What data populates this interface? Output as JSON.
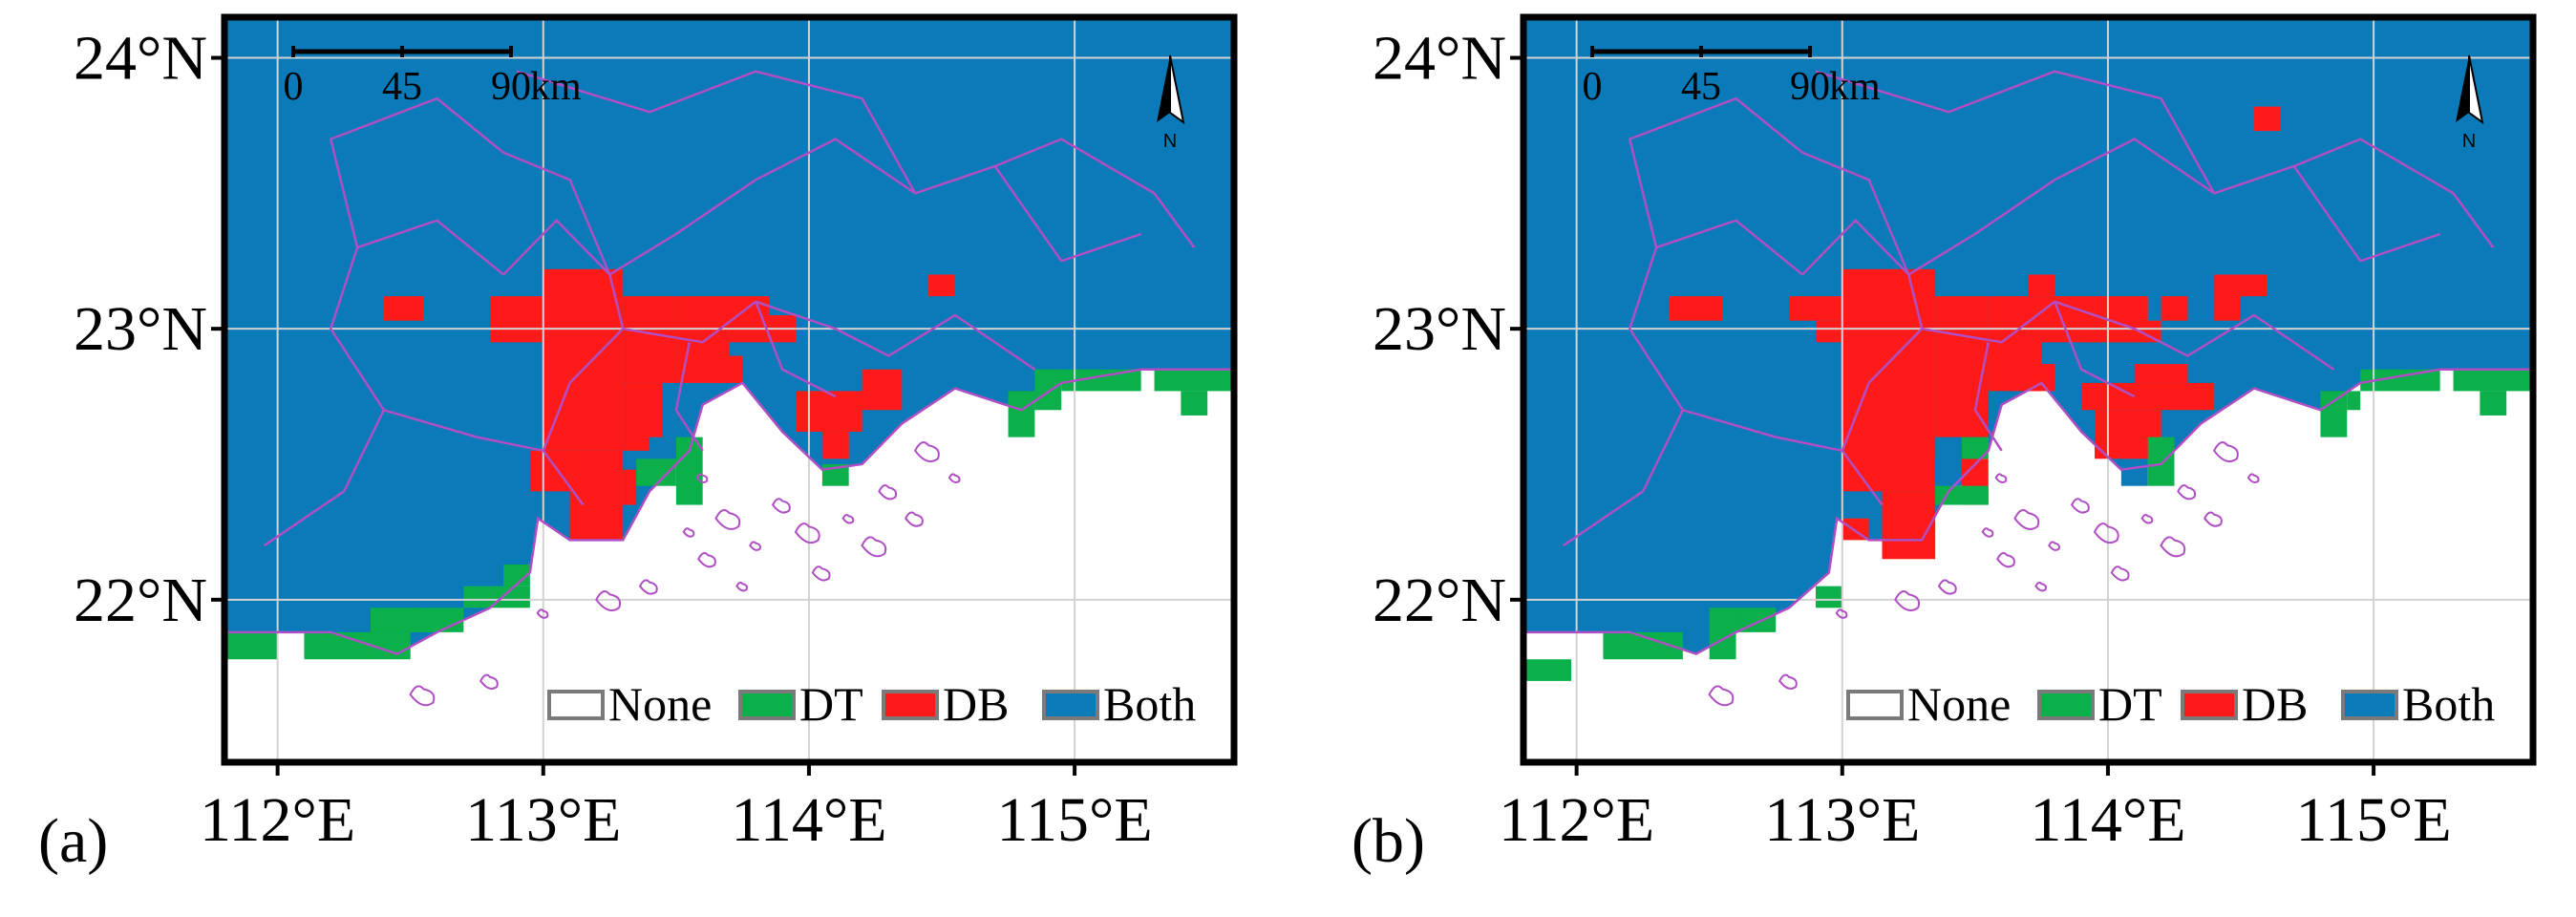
{
  "colors": {
    "None": "#ffffff",
    "DT": "#0bb04b",
    "DB": "#ff1a1a",
    "Both": "#0b7ab9",
    "boundary": "#b04fc4",
    "grid": "#d2d2d2",
    "frame": "#000000"
  },
  "axes": {
    "x_ticks": [
      "112°E",
      "113°E",
      "114°E",
      "115°E"
    ],
    "y_ticks": [
      "24°N",
      "23°N",
      "22°N"
    ],
    "x_range": [
      111.8,
      115.6
    ],
    "y_range": [
      21.4,
      24.15
    ]
  },
  "scale_bar": {
    "labels": [
      "0",
      "45",
      "90"
    ],
    "unit": "km"
  },
  "north_arrow": {
    "letter": "N",
    "icon": "north-arrow-icon"
  },
  "legend": [
    {
      "key": "None",
      "label": "None"
    },
    {
      "key": "DT",
      "label": "DT"
    },
    {
      "key": "DB",
      "label": "DB"
    },
    {
      "key": "Both",
      "label": "Both"
    }
  ],
  "panels": [
    {
      "label": "(a)",
      "cells": [
        {
          "lon_min": 111.8,
          "lon_max": 112.0,
          "lat_min": 21.78,
          "lat_max": 21.88,
          "category": "DT"
        },
        {
          "lon_min": 112.1,
          "lon_max": 112.5,
          "lat_min": 21.78,
          "lat_max": 21.88,
          "category": "DT"
        },
        {
          "lon_min": 112.35,
          "lon_max": 112.55,
          "lat_min": 21.88,
          "lat_max": 21.97,
          "category": "DT"
        },
        {
          "lon_min": 112.5,
          "lon_max": 112.7,
          "lat_min": 21.88,
          "lat_max": 21.97,
          "category": "DT"
        },
        {
          "lon_min": 112.7,
          "lon_max": 112.95,
          "lat_min": 21.97,
          "lat_max": 22.05,
          "category": "DT"
        },
        {
          "lon_min": 112.85,
          "lon_max": 112.95,
          "lat_min": 22.05,
          "lat_max": 22.13,
          "category": "DT"
        },
        {
          "lon_min": 112.4,
          "lon_max": 112.55,
          "lat_min": 23.03,
          "lat_max": 23.12,
          "category": "DB"
        },
        {
          "lon_min": 112.8,
          "lon_max": 113.0,
          "lat_min": 22.95,
          "lat_max": 23.12,
          "category": "DB"
        },
        {
          "lon_min": 113.0,
          "lon_max": 113.3,
          "lat_min": 22.55,
          "lat_max": 23.22,
          "category": "DB"
        },
        {
          "lon_min": 113.3,
          "lon_max": 113.5,
          "lat_min": 22.8,
          "lat_max": 23.12,
          "category": "DB"
        },
        {
          "lon_min": 113.5,
          "lon_max": 113.7,
          "lat_min": 22.8,
          "lat_max": 23.12,
          "category": "DB"
        },
        {
          "lon_min": 113.7,
          "lon_max": 113.85,
          "lat_min": 22.95,
          "lat_max": 23.12,
          "category": "DB"
        },
        {
          "lon_min": 113.85,
          "lon_max": 113.95,
          "lat_min": 22.95,
          "lat_max": 23.05,
          "category": "DB"
        },
        {
          "lon_min": 113.3,
          "lon_max": 113.45,
          "lat_min": 22.55,
          "lat_max": 22.8,
          "category": "DB"
        },
        {
          "lon_min": 112.95,
          "lon_max": 113.1,
          "lat_min": 22.4,
          "lat_max": 22.55,
          "category": "DB"
        },
        {
          "lon_min": 113.1,
          "lon_max": 113.3,
          "lat_min": 22.22,
          "lat_max": 22.55,
          "category": "DB"
        },
        {
          "lon_min": 113.3,
          "lon_max": 113.35,
          "lat_min": 22.35,
          "lat_max": 22.48,
          "category": "DB"
        },
        {
          "lon_min": 113.65,
          "lon_max": 113.75,
          "lat_min": 22.8,
          "lat_max": 22.9,
          "category": "DB"
        },
        {
          "lon_min": 113.95,
          "lon_max": 114.2,
          "lat_min": 22.62,
          "lat_max": 22.77,
          "category": "DB"
        },
        {
          "lon_min": 114.2,
          "lon_max": 114.35,
          "lat_min": 22.7,
          "lat_max": 22.85,
          "category": "DB"
        },
        {
          "lon_min": 114.05,
          "lon_max": 114.15,
          "lat_min": 22.52,
          "lat_max": 22.62,
          "category": "DB"
        },
        {
          "lon_min": 114.45,
          "lon_max": 114.55,
          "lat_min": 23.12,
          "lat_max": 23.2,
          "category": "DB"
        },
        {
          "lon_min": 113.4,
          "lon_max": 113.5,
          "lat_min": 22.52,
          "lat_max": 22.6,
          "category": "Both"
        },
        {
          "lon_min": 113.35,
          "lon_max": 113.5,
          "lat_min": 22.42,
          "lat_max": 22.52,
          "category": "DT"
        },
        {
          "lon_min": 113.5,
          "lon_max": 113.6,
          "lat_min": 22.35,
          "lat_max": 22.6,
          "category": "DT"
        },
        {
          "lon_min": 114.05,
          "lon_max": 114.15,
          "lat_min": 22.42,
          "lat_max": 22.5,
          "category": "DT"
        },
        {
          "lon_min": 114.75,
          "lon_max": 114.85,
          "lat_min": 22.6,
          "lat_max": 22.77,
          "category": "DT"
        },
        {
          "lon_min": 114.85,
          "lon_max": 114.95,
          "lat_min": 22.7,
          "lat_max": 22.85,
          "category": "DT"
        },
        {
          "lon_min": 114.95,
          "lon_max": 115.25,
          "lat_min": 22.77,
          "lat_max": 22.85,
          "category": "DT"
        },
        {
          "lon_min": 115.3,
          "lon_max": 115.6,
          "lat_min": 22.77,
          "lat_max": 22.85,
          "category": "DT"
        },
        {
          "lon_min": 115.4,
          "lon_max": 115.5,
          "lat_min": 22.68,
          "lat_max": 22.77,
          "category": "DT"
        }
      ]
    },
    {
      "label": "(b)",
      "cells": [
        {
          "lon_min": 111.8,
          "lon_max": 111.98,
          "lat_min": 21.7,
          "lat_max": 21.78,
          "category": "DT"
        },
        {
          "lon_min": 112.1,
          "lon_max": 112.4,
          "lat_min": 21.78,
          "lat_max": 21.88,
          "category": "DT"
        },
        {
          "lon_min": 112.5,
          "lon_max": 112.6,
          "lat_min": 21.78,
          "lat_max": 21.97,
          "category": "DT"
        },
        {
          "lon_min": 112.6,
          "lon_max": 112.75,
          "lat_min": 21.88,
          "lat_max": 21.97,
          "category": "DT"
        },
        {
          "lon_min": 112.9,
          "lon_max": 113.0,
          "lat_min": 21.97,
          "lat_max": 22.05,
          "category": "DT"
        },
        {
          "lon_min": 112.35,
          "lon_max": 112.55,
          "lat_min": 23.03,
          "lat_max": 23.12,
          "category": "DB"
        },
        {
          "lon_min": 112.8,
          "lon_max": 113.0,
          "lat_min": 23.03,
          "lat_max": 23.12,
          "category": "DB"
        },
        {
          "lon_min": 112.9,
          "lon_max": 113.0,
          "lat_min": 22.95,
          "lat_max": 23.03,
          "category": "DB"
        },
        {
          "lon_min": 113.0,
          "lon_max": 113.35,
          "lat_min": 22.4,
          "lat_max": 23.22,
          "category": "DB"
        },
        {
          "lon_min": 113.35,
          "lon_max": 113.55,
          "lat_min": 22.6,
          "lat_max": 23.12,
          "category": "DB"
        },
        {
          "lon_min": 113.55,
          "lon_max": 113.75,
          "lat_min": 22.77,
          "lat_max": 23.12,
          "category": "DB"
        },
        {
          "lon_min": 113.75,
          "lon_max": 114.15,
          "lat_min": 22.95,
          "lat_max": 23.12,
          "category": "DB"
        },
        {
          "lon_min": 113.9,
          "lon_max": 114.2,
          "lat_min": 22.95,
          "lat_max": 23.03,
          "category": "DB"
        },
        {
          "lon_min": 113.7,
          "lon_max": 113.8,
          "lat_min": 23.12,
          "lat_max": 23.2,
          "category": "DB"
        },
        {
          "lon_min": 114.2,
          "lon_max": 114.3,
          "lat_min": 23.03,
          "lat_max": 23.12,
          "category": "DB"
        },
        {
          "lon_min": 114.4,
          "lon_max": 114.5,
          "lat_min": 23.03,
          "lat_max": 23.2,
          "category": "DB"
        },
        {
          "lon_min": 114.5,
          "lon_max": 114.6,
          "lat_min": 23.12,
          "lat_max": 23.2,
          "category": "DB"
        },
        {
          "lon_min": 114.55,
          "lon_max": 114.65,
          "lat_min": 23.73,
          "lat_max": 23.82,
          "category": "DB"
        },
        {
          "lon_min": 113.15,
          "lon_max": 113.35,
          "lat_min": 22.15,
          "lat_max": 22.4,
          "category": "DB"
        },
        {
          "lon_min": 113.0,
          "lon_max": 113.1,
          "lat_min": 22.22,
          "lat_max": 22.3,
          "category": "DB"
        },
        {
          "lon_min": 113.45,
          "lon_max": 113.55,
          "lat_min": 22.35,
          "lat_max": 22.52,
          "category": "DB"
        },
        {
          "lon_min": 113.7,
          "lon_max": 113.8,
          "lat_min": 22.77,
          "lat_max": 22.87,
          "category": "DB"
        },
        {
          "lon_min": 113.9,
          "lon_max": 114.4,
          "lat_min": 22.7,
          "lat_max": 22.8,
          "category": "DB"
        },
        {
          "lon_min": 114.1,
          "lon_max": 114.3,
          "lat_min": 22.8,
          "lat_max": 22.87,
          "category": "DB"
        },
        {
          "lon_min": 113.95,
          "lon_max": 114.2,
          "lat_min": 22.52,
          "lat_max": 22.7,
          "category": "DB"
        },
        {
          "lon_min": 113.35,
          "lon_max": 113.45,
          "lat_min": 22.42,
          "lat_max": 22.52,
          "category": "Both"
        },
        {
          "lon_min": 113.35,
          "lon_max": 113.55,
          "lat_min": 22.35,
          "lat_max": 22.42,
          "category": "DT"
        },
        {
          "lon_min": 113.45,
          "lon_max": 113.55,
          "lat_min": 22.52,
          "lat_max": 22.6,
          "category": "DT"
        },
        {
          "lon_min": 114.05,
          "lon_max": 114.15,
          "lat_min": 22.42,
          "lat_max": 22.5,
          "category": "Both"
        },
        {
          "lon_min": 114.15,
          "lon_max": 114.25,
          "lat_min": 22.42,
          "lat_max": 22.6,
          "category": "DT"
        },
        {
          "lon_min": 114.8,
          "lon_max": 114.9,
          "lat_min": 22.6,
          "lat_max": 22.77,
          "category": "DT"
        },
        {
          "lon_min": 114.9,
          "lon_max": 114.95,
          "lat_min": 22.7,
          "lat_max": 22.77,
          "category": "DT"
        },
        {
          "lon_min": 114.95,
          "lon_max": 115.25,
          "lat_min": 22.77,
          "lat_max": 22.85,
          "category": "DT"
        },
        {
          "lon_min": 115.3,
          "lon_max": 115.6,
          "lat_min": 22.77,
          "lat_max": 22.85,
          "category": "DT"
        },
        {
          "lon_min": 115.4,
          "lon_max": 115.5,
          "lat_min": 22.68,
          "lat_max": 22.77,
          "category": "DT"
        }
      ]
    }
  ]
}
